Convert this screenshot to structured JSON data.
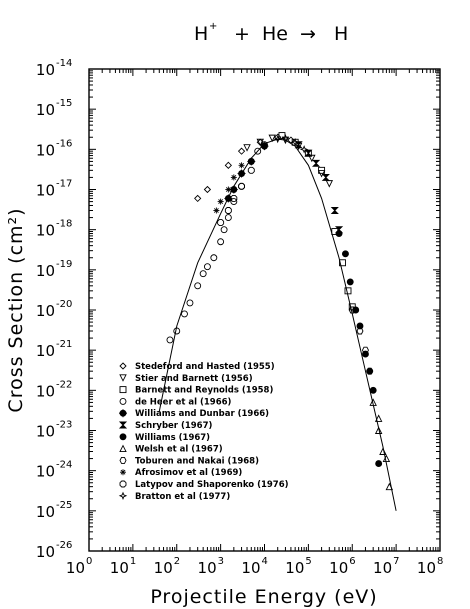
{
  "chart_data": {
    "type": "scatter",
    "title": "H⁺ + He → H",
    "title_parts": {
      "a": "H",
      "a_sup": "+",
      "plus": "+",
      "b": "He",
      "arrow": "→",
      "c": "H"
    },
    "xlabel": "Projectile Energy (eV)",
    "ylabel": "Cross Section (cm²)",
    "x_scale": "log",
    "y_scale": "log",
    "xlim": [
      1,
      100000000
    ],
    "ylim": [
      1e-26,
      1e-14
    ],
    "x_ticks": [
      {
        "base": "10",
        "exp": "0"
      },
      {
        "base": "10",
        "exp": "1"
      },
      {
        "base": "10",
        "exp": "2"
      },
      {
        "base": "10",
        "exp": "3"
      },
      {
        "base": "10",
        "exp": "4"
      },
      {
        "base": "10",
        "exp": "5"
      },
      {
        "base": "10",
        "exp": "6"
      },
      {
        "base": "10",
        "exp": "7"
      },
      {
        "base": "10",
        "exp": "8"
      }
    ],
    "y_ticks": [
      {
        "base": "10",
        "exp": "-14"
      },
      {
        "base": "10",
        "exp": "-15"
      },
      {
        "base": "10",
        "exp": "-16"
      },
      {
        "base": "10",
        "exp": "-17"
      },
      {
        "base": "10",
        "exp": "-18"
      },
      {
        "base": "10",
        "exp": "-19"
      },
      {
        "base": "10",
        "exp": "-20"
      },
      {
        "base": "10",
        "exp": "-21"
      },
      {
        "base": "10",
        "exp": "-22"
      },
      {
        "base": "10",
        "exp": "-23"
      },
      {
        "base": "10",
        "exp": "-24"
      },
      {
        "base": "10",
        "exp": "-25"
      },
      {
        "base": "10",
        "exp": "-26"
      }
    ],
    "grid": false,
    "legend_position": "lower-left",
    "fit_curve": {
      "x": [
        40,
        100,
        300,
        1000,
        2000,
        5000,
        10000,
        20000,
        30000,
        50000,
        100000,
        200000,
        500000,
        1000000,
        2000000,
        5000000,
        10000000
      ],
      "y": [
        3e-23,
        4e-21,
        1.5e-19,
        2.5e-18,
        1.2e-17,
        6e-17,
        1.4e-16,
        1.8e-16,
        1.7e-16,
        1.2e-16,
        4e-17,
        6e-18,
        2e-19,
        8e-21,
        3e-22,
        4e-24,
        1e-25
      ]
    },
    "series": [
      {
        "name": "Stedeford and Hasted (1955)",
        "marker": "diamond",
        "points": [
          [
            300,
            6e-18
          ],
          [
            500,
            1e-17
          ],
          [
            1500,
            4e-17
          ],
          [
            3000,
            9e-17
          ],
          [
            8000,
            1.5e-16
          ],
          [
            20000,
            2e-16
          ],
          [
            40000,
            1.7e-16
          ]
        ]
      },
      {
        "name": "Stier and Barnett (1956)",
        "marker": "triangle-down",
        "points": [
          [
            4000,
            1.1e-16
          ],
          [
            8000,
            1.5e-16
          ],
          [
            15000,
            1.9e-16
          ],
          [
            30000,
            1.7e-16
          ],
          [
            60000,
            1.2e-16
          ],
          [
            120000,
            6e-17
          ],
          [
            200000,
            2.5e-17
          ],
          [
            300000,
            1.4e-17
          ]
        ]
      },
      {
        "name": "Barnett and Reynolds (1958)",
        "marker": "square",
        "points": [
          [
            25000,
            2.2e-16
          ],
          [
            50000,
            1.5e-16
          ],
          [
            100000,
            8e-17
          ],
          [
            200000,
            3e-17
          ],
          [
            400000,
            9e-19
          ],
          [
            600000,
            1.5e-19
          ],
          [
            800000,
            3e-20
          ],
          [
            1000000,
            1.2e-20
          ]
        ]
      },
      {
        "name": "de Heer et al (1966)",
        "marker": "circle",
        "points": [
          [
            70,
            1.8e-21
          ],
          [
            100,
            3e-21
          ],
          [
            150,
            8e-21
          ],
          [
            200,
            1.5e-20
          ],
          [
            300,
            4e-20
          ],
          [
            400,
            8e-20
          ],
          [
            500,
            1.2e-19
          ],
          [
            700,
            2e-19
          ],
          [
            1000,
            5e-19
          ],
          [
            1200,
            1e-18
          ],
          [
            1500,
            2e-18
          ],
          [
            2000,
            5e-18
          ],
          [
            3000,
            1.2e-17
          ],
          [
            5000,
            5e-17
          ],
          [
            7000,
            9e-17
          ],
          [
            10000,
            1.3e-16
          ]
        ]
      },
      {
        "name": "Williams and Dunbar (1966)",
        "marker": "circle-plus",
        "points": [
          [
            1500,
            6e-18
          ],
          [
            2000,
            1e-17
          ],
          [
            3000,
            2.5e-17
          ],
          [
            5000,
            5e-17
          ],
          [
            10000,
            1.2e-16
          ]
        ]
      },
      {
        "name": "Schryber (1967)",
        "marker": "hourglass",
        "points": [
          [
            60000,
            1.3e-16
          ],
          [
            100000,
            8e-17
          ],
          [
            150000,
            4.5e-17
          ],
          [
            250000,
            2e-17
          ],
          [
            400000,
            3e-18
          ],
          [
            500000,
            1e-18
          ]
        ]
      },
      {
        "name": "Williams (1967)",
        "marker": "filled-circle",
        "points": [
          [
            500000,
            8e-19
          ],
          [
            700000,
            2.5e-19
          ],
          [
            900000,
            5e-20
          ],
          [
            1200000,
            1e-20
          ],
          [
            1500000,
            4e-21
          ],
          [
            2000000,
            8e-22
          ],
          [
            2500000,
            3e-22
          ],
          [
            3000000,
            1e-22
          ],
          [
            4000000,
            1.5e-24
          ]
        ]
      },
      {
        "name": "Welsh et al (1967)",
        "marker": "triangle-up",
        "points": [
          [
            3000000,
            5e-23
          ],
          [
            4000000,
            1e-23
          ],
          [
            5000000,
            3e-24
          ],
          [
            6000000,
            2e-24
          ],
          [
            7000000,
            4e-25
          ],
          [
            4000000,
            2e-23
          ]
        ]
      },
      {
        "name": "Toburen and Nakai (1968)",
        "marker": "hexagon",
        "points": [
          [
            1000000,
            1e-20
          ],
          [
            1500000,
            3e-21
          ],
          [
            2000000,
            1e-21
          ],
          [
            2500000,
            3e-22
          ]
        ]
      },
      {
        "name": "Afrosimov et al (1969)",
        "marker": "asterisk",
        "points": [
          [
            800,
            3e-18
          ],
          [
            1000,
            5e-18
          ],
          [
            1500,
            1e-17
          ],
          [
            2000,
            2e-17
          ],
          [
            3000,
            4e-17
          ]
        ]
      },
      {
        "name": "Latypov and Shaporenko (1976)",
        "marker": "octagon",
        "points": [
          [
            1000,
            1.5e-18
          ],
          [
            1500,
            3e-18
          ],
          [
            2000,
            6e-18
          ],
          [
            3000,
            1.2e-17
          ],
          [
            5000,
            3e-17
          ]
        ]
      },
      {
        "name": "Bratton et al (1977)",
        "marker": "star",
        "points": [
          [
            20000,
            1.8e-16
          ],
          [
            30000,
            1.9e-16
          ],
          [
            50000,
            1.5e-16
          ],
          [
            80000,
            1e-16
          ]
        ]
      }
    ]
  }
}
